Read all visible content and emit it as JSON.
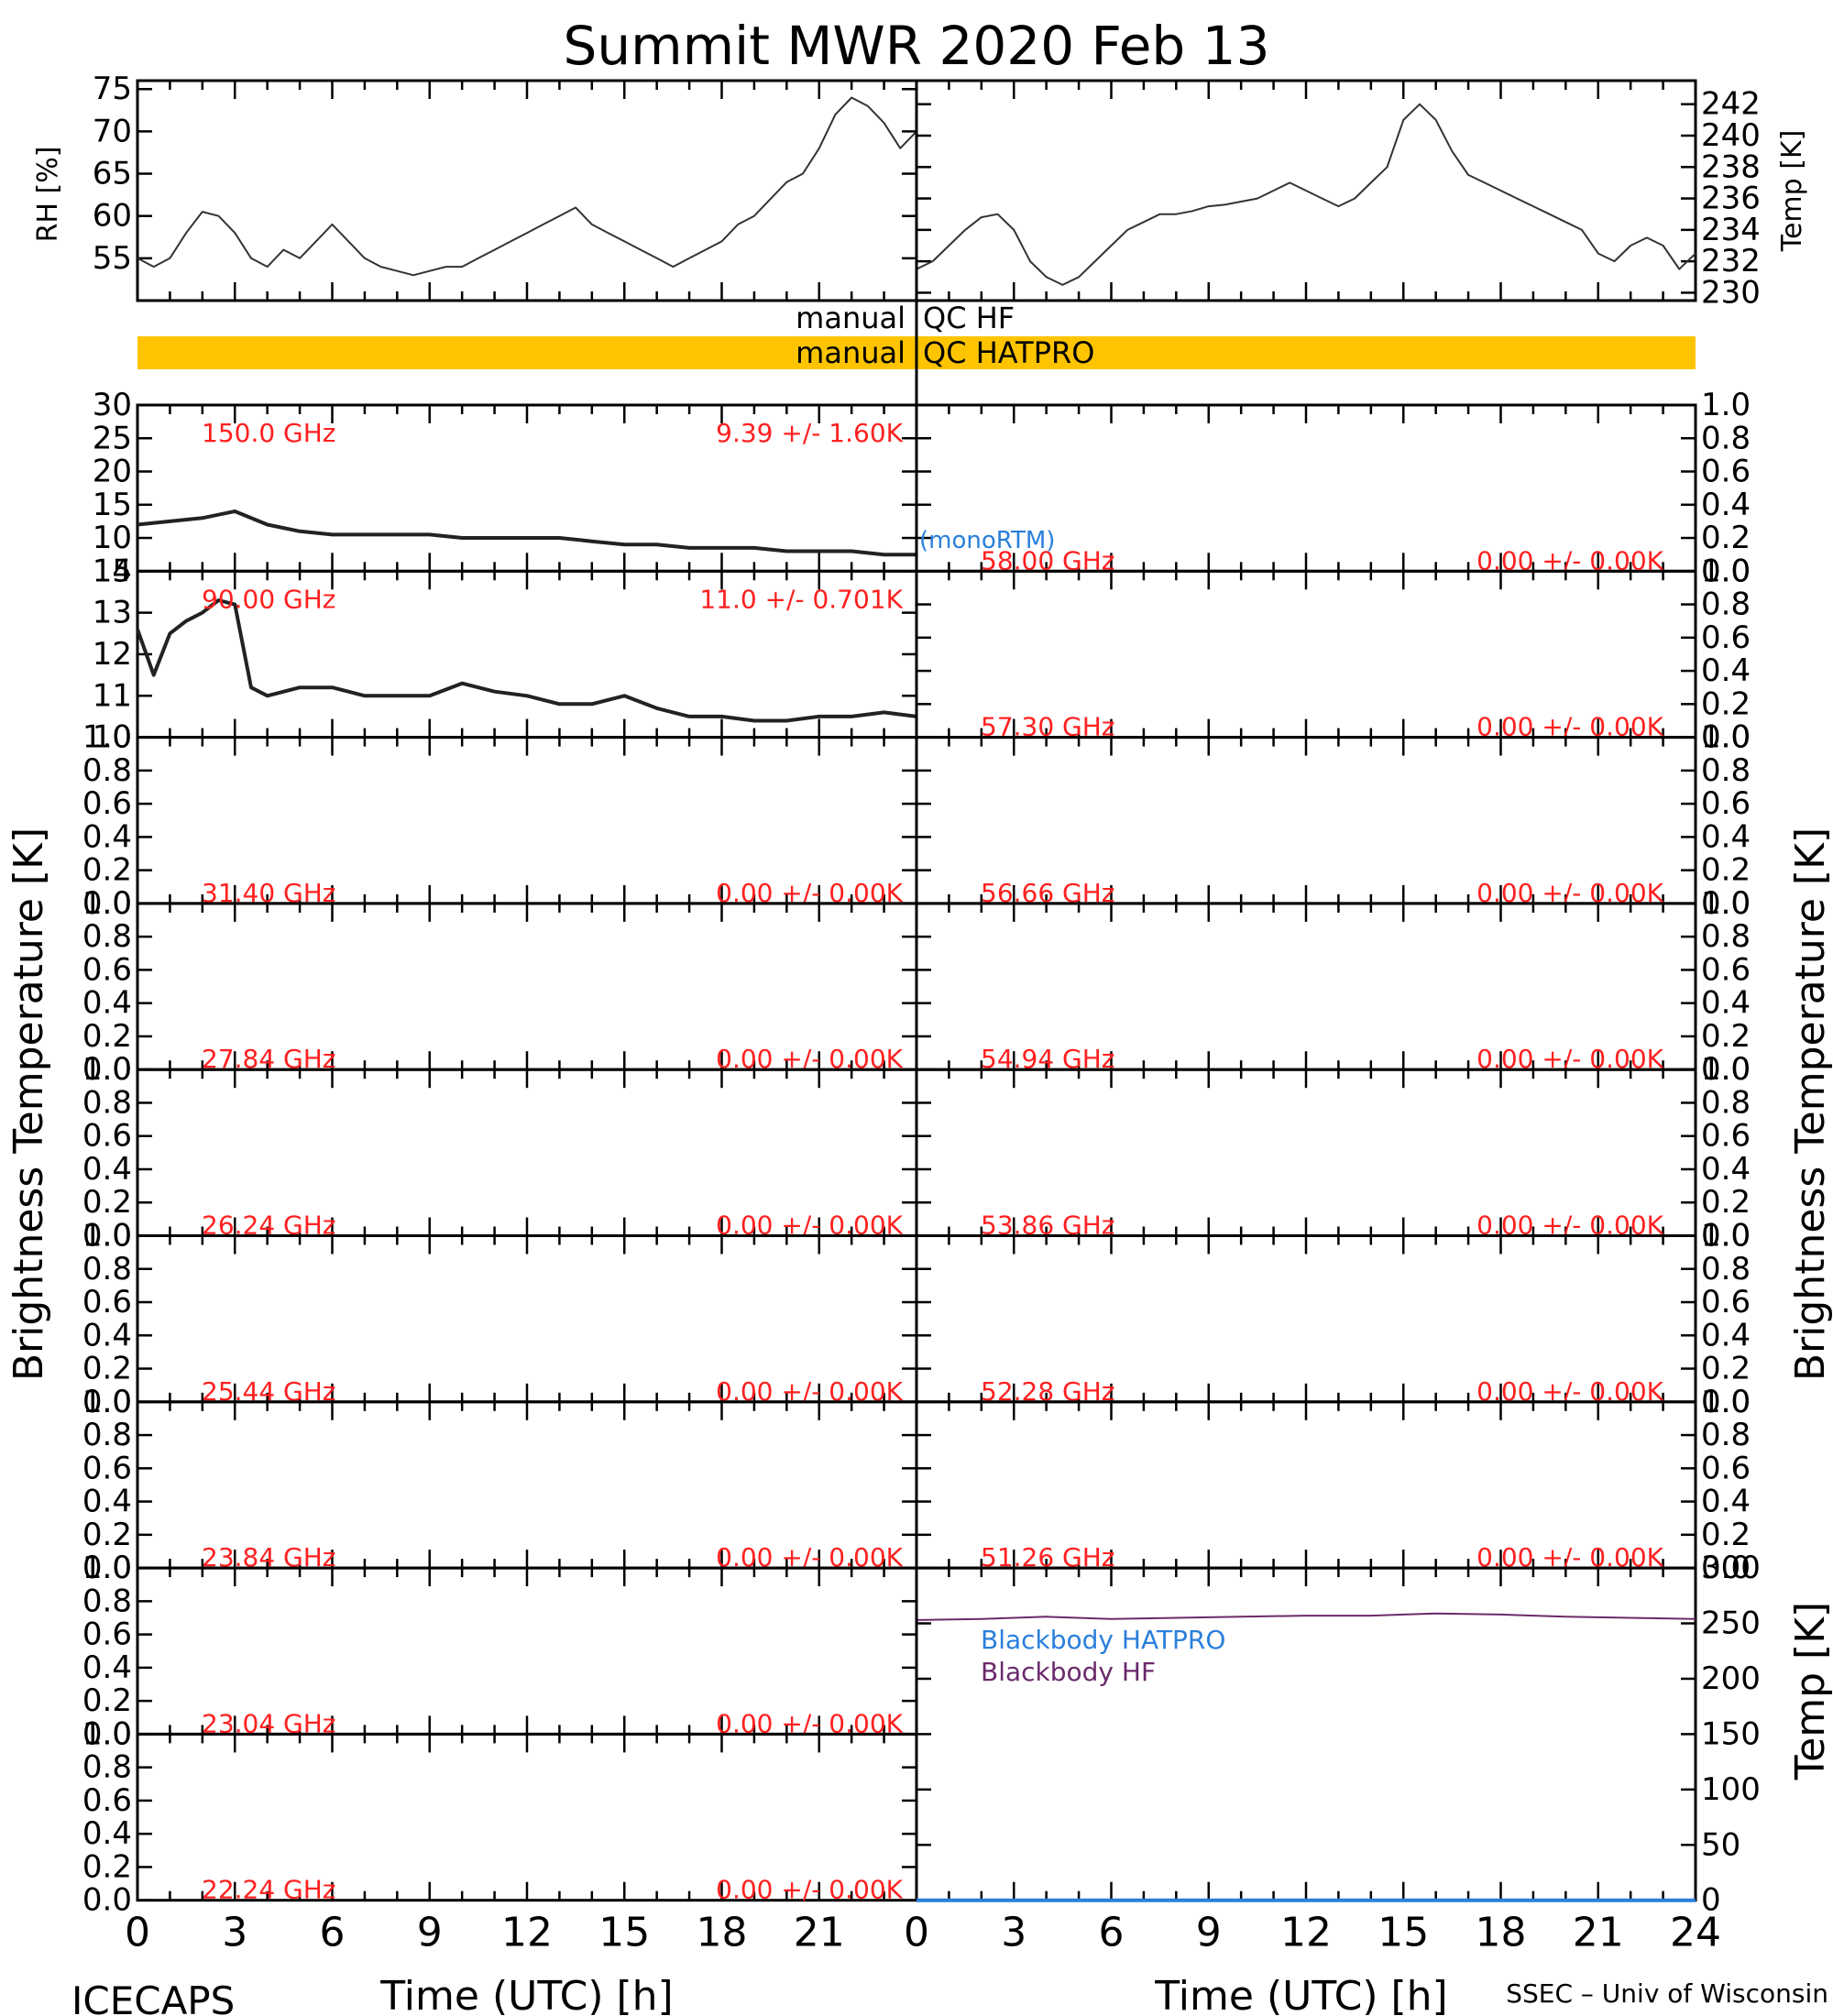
{
  "title": "Summit MWR 2020 Feb 13",
  "footer_left": "ICECAPS",
  "footer_right": "SSEC – Univ of Wisconsin",
  "colors": {
    "red_labels": "#ff2020",
    "qc_bar": "#ffc400",
    "blue": "#2a7fdc",
    "purple": "#6b2a6b",
    "trace": "#222222"
  },
  "x_axis": {
    "label": "Time (UTC) [h]",
    "ticks": [
      "0",
      "3",
      "6",
      "9",
      "12",
      "15",
      "18",
      "21",
      "24"
    ],
    "range": [
      0,
      24
    ]
  },
  "qc": {
    "hf_left": "manual",
    "hf_right": "QC HF",
    "hatpro_left": "manual",
    "hatpro_right": "QC HATPRO"
  },
  "y_axis_labels": {
    "left": "Brightness Temperature [K]",
    "right": "Brightness Temperature [K]",
    "rh": "RH [%]",
    "temp": "Temp [K]",
    "bb_temp": "Temp [K]"
  },
  "legend": {
    "monortm": "(monoRTM)",
    "bb_hatpro": "Blackbody HATPRO",
    "bb_hf": "Blackbody HF"
  },
  "chart_data": [
    {
      "type": "line",
      "panel": "rh",
      "ylabel": "RH [%]",
      "ylim": [
        50,
        76
      ],
      "yticks": [
        "75",
        "70",
        "65",
        "60",
        "55"
      ],
      "x": [
        0,
        0.5,
        1,
        1.5,
        2,
        2.5,
        3,
        3.5,
        4,
        4.5,
        5,
        5.5,
        6,
        6.5,
        7,
        7.5,
        8,
        8.5,
        9,
        9.5,
        10,
        10.5,
        11,
        11.5,
        12,
        12.5,
        13,
        13.5,
        14,
        14.5,
        15,
        15.5,
        16,
        16.5,
        17,
        17.5,
        18,
        18.5,
        19,
        19.5,
        20,
        20.5,
        21,
        21.5,
        22,
        22.5,
        23,
        23.5,
        24
      ],
      "values": [
        55,
        54,
        55,
        58,
        60.5,
        60,
        58,
        55,
        54,
        56,
        55,
        57,
        59,
        57,
        55,
        54,
        53.5,
        53,
        53.5,
        54,
        54,
        55,
        56,
        57,
        58,
        59,
        60,
        61,
        59,
        58,
        57,
        56,
        55,
        54,
        55,
        56,
        57,
        59,
        60,
        62,
        64,
        65,
        68,
        72,
        74,
        73,
        71,
        68,
        70
      ]
    },
    {
      "type": "line",
      "panel": "temp",
      "ylabel": "Temp [K]",
      "ylim": [
        229.5,
        243.5
      ],
      "yticks": [
        "242",
        "240",
        "238",
        "236",
        "234",
        "232",
        "230"
      ],
      "x": [
        0,
        0.5,
        1,
        1.5,
        2,
        2.5,
        3,
        3.5,
        4,
        4.5,
        5,
        5.5,
        6,
        6.5,
        7,
        7.5,
        8,
        8.5,
        9,
        9.5,
        10,
        10.5,
        11,
        11.5,
        12,
        12.5,
        13,
        13.5,
        14,
        14.5,
        15,
        15.5,
        16,
        16.5,
        17,
        17.5,
        18,
        18.5,
        19,
        19.5,
        20,
        20.5,
        21,
        21.5,
        22,
        22.5,
        23,
        23.5,
        24
      ],
      "values": [
        231.5,
        232,
        233,
        234,
        234.8,
        235,
        234,
        232,
        231,
        230.5,
        231,
        232,
        233,
        234,
        234.5,
        235,
        235,
        235.2,
        235.5,
        235.6,
        235.8,
        236,
        236.5,
        237,
        236.5,
        236,
        235.5,
        236,
        237,
        238,
        241,
        242,
        241,
        239,
        237.5,
        237,
        236.5,
        236,
        235.5,
        235,
        234.5,
        234,
        232.5,
        232,
        233,
        233.5,
        233,
        231.5,
        232.5
      ]
    },
    {
      "type": "line",
      "panel": "left-1",
      "freq": "150.0 GHz",
      "stat": "9.39 +/-  1.60K",
      "ylim": [
        5,
        30
      ],
      "yticks": [
        "30",
        "25",
        "20",
        "15",
        "10",
        "5"
      ],
      "x": [
        0,
        1,
        2,
        3,
        4,
        5,
        6,
        7,
        8,
        9,
        10,
        11,
        12,
        13,
        14,
        15,
        16,
        17,
        18,
        19,
        20,
        21,
        22,
        23,
        24
      ],
      "values": [
        12,
        12.5,
        13,
        14,
        12,
        11,
        10.5,
        10.5,
        10.5,
        10.5,
        10,
        10,
        10,
        10,
        9.5,
        9,
        9,
        8.5,
        8.5,
        8.5,
        8,
        8,
        8,
        7.5,
        7.5
      ]
    },
    {
      "type": "line",
      "panel": "left-2",
      "freq": "90.00 GHz",
      "stat": "11.0 +/- 0.701K",
      "ylim": [
        10,
        14
      ],
      "yticks": [
        "14",
        "13",
        "12",
        "11",
        "10"
      ],
      "x": [
        0,
        0.5,
        1,
        1.5,
        2,
        2.5,
        3,
        3.5,
        4,
        5,
        6,
        7,
        8,
        9,
        10,
        11,
        12,
        13,
        14,
        15,
        16,
        17,
        18,
        19,
        20,
        21,
        22,
        23,
        24
      ],
      "values": [
        12.6,
        11.5,
        12.5,
        12.8,
        13,
        13.3,
        13.2,
        11.2,
        11,
        11.2,
        11.2,
        11,
        11,
        11,
        11.3,
        11.1,
        11,
        10.8,
        10.8,
        11,
        10.7,
        10.5,
        10.5,
        10.4,
        10.4,
        10.5,
        10.5,
        10.6,
        10.5
      ]
    },
    {
      "type": "line",
      "panel": "left-3",
      "freq": "31.40 GHz",
      "stat": "0.00 +/-  0.00K",
      "ylim": [
        0,
        1
      ],
      "yticks": [
        "1.0",
        "0.8",
        "0.6",
        "0.4",
        "0.2",
        "0.0"
      ]
    },
    {
      "type": "line",
      "panel": "left-4",
      "freq": "27.84 GHz",
      "stat": "0.00 +/-  0.00K",
      "ylim": [
        0,
        1
      ],
      "yticks": [
        "1.0",
        "0.8",
        "0.6",
        "0.4",
        "0.2",
        "0.0"
      ]
    },
    {
      "type": "line",
      "panel": "left-5",
      "freq": "26.24 GHz",
      "stat": "0.00 +/-  0.00K",
      "ylim": [
        0,
        1
      ],
      "yticks": [
        "1.0",
        "0.8",
        "0.6",
        "0.4",
        "0.2",
        "0.0"
      ]
    },
    {
      "type": "line",
      "panel": "left-6",
      "freq": "25.44 GHz",
      "stat": "0.00 +/-  0.00K",
      "ylim": [
        0,
        1
      ],
      "yticks": [
        "1.0",
        "0.8",
        "0.6",
        "0.4",
        "0.2",
        "0.0"
      ]
    },
    {
      "type": "line",
      "panel": "left-7",
      "freq": "23.84 GHz",
      "stat": "0.00 +/-  0.00K",
      "ylim": [
        0,
        1
      ],
      "yticks": [
        "1.0",
        "0.8",
        "0.6",
        "0.4",
        "0.2",
        "0.0"
      ]
    },
    {
      "type": "line",
      "panel": "left-8",
      "freq": "23.04 GHz",
      "stat": "0.00 +/-  0.00K",
      "ylim": [
        0,
        1
      ],
      "yticks": [
        "1.0",
        "0.8",
        "0.6",
        "0.4",
        "0.2",
        "0.0"
      ]
    },
    {
      "type": "line",
      "panel": "left-9",
      "freq": "22.24 GHz",
      "stat": "0.00 +/-  0.00K",
      "ylim": [
        0,
        1
      ],
      "yticks": [
        "1.0",
        "0.8",
        "0.6",
        "0.4",
        "0.2",
        "0.0"
      ]
    },
    {
      "type": "line",
      "panel": "right-1",
      "freq": "58.00 GHz",
      "stat": "0.00 +/-  0.00K",
      "ylim": [
        0,
        1
      ],
      "yticks": [
        "1.0",
        "0.8",
        "0.6",
        "0.4",
        "0.2",
        "0.0"
      ]
    },
    {
      "type": "line",
      "panel": "right-2",
      "freq": "57.30 GHz",
      "stat": "0.00 +/-  0.00K",
      "ylim": [
        0,
        1
      ],
      "yticks": [
        "1.0",
        "0.8",
        "0.6",
        "0.4",
        "0.2",
        "0.0"
      ]
    },
    {
      "type": "line",
      "panel": "right-3",
      "freq": "56.66 GHz",
      "stat": "0.00 +/-  0.00K",
      "ylim": [
        0,
        1
      ],
      "yticks": [
        "1.0",
        "0.8",
        "0.6",
        "0.4",
        "0.2",
        "0.0"
      ]
    },
    {
      "type": "line",
      "panel": "right-4",
      "freq": "54.94 GHz",
      "stat": "0.00 +/-  0.00K",
      "ylim": [
        0,
        1
      ],
      "yticks": [
        "1.0",
        "0.8",
        "0.6",
        "0.4",
        "0.2",
        "0.0"
      ]
    },
    {
      "type": "line",
      "panel": "right-5",
      "freq": "53.86 GHz",
      "stat": "0.00 +/-  0.00K",
      "ylim": [
        0,
        1
      ],
      "yticks": [
        "1.0",
        "0.8",
        "0.6",
        "0.4",
        "0.2",
        "0.0"
      ]
    },
    {
      "type": "line",
      "panel": "right-6",
      "freq": "52.28 GHz",
      "stat": "0.00 +/-  0.00K",
      "ylim": [
        0,
        1
      ],
      "yticks": [
        "1.0",
        "0.8",
        "0.6",
        "0.4",
        "0.2",
        "0.0"
      ]
    },
    {
      "type": "line",
      "panel": "right-7",
      "freq": "51.26 GHz",
      "stat": "0.00 +/-  0.00K",
      "ylim": [
        0,
        1
      ],
      "yticks": [
        "1.0",
        "0.8",
        "0.6",
        "0.4",
        "0.2",
        "0.0"
      ]
    },
    {
      "type": "line",
      "panel": "blackbody",
      "ylabel": "Temp [K]",
      "ylim": [
        0,
        300
      ],
      "yticks": [
        "300",
        "250",
        "200",
        "150",
        "100",
        "50",
        "0"
      ],
      "series": [
        {
          "name": "Blackbody HATPRO",
          "x": [
            0,
            24
          ],
          "values": [
            0,
            0
          ]
        },
        {
          "name": "Blackbody HF",
          "x": [
            0,
            2,
            4,
            6,
            8,
            10,
            12,
            14,
            16,
            18,
            20,
            22,
            24
          ],
          "values": [
            253,
            254,
            256,
            254,
            255,
            256,
            257,
            257,
            259,
            258,
            256,
            255,
            254
          ]
        }
      ]
    }
  ]
}
